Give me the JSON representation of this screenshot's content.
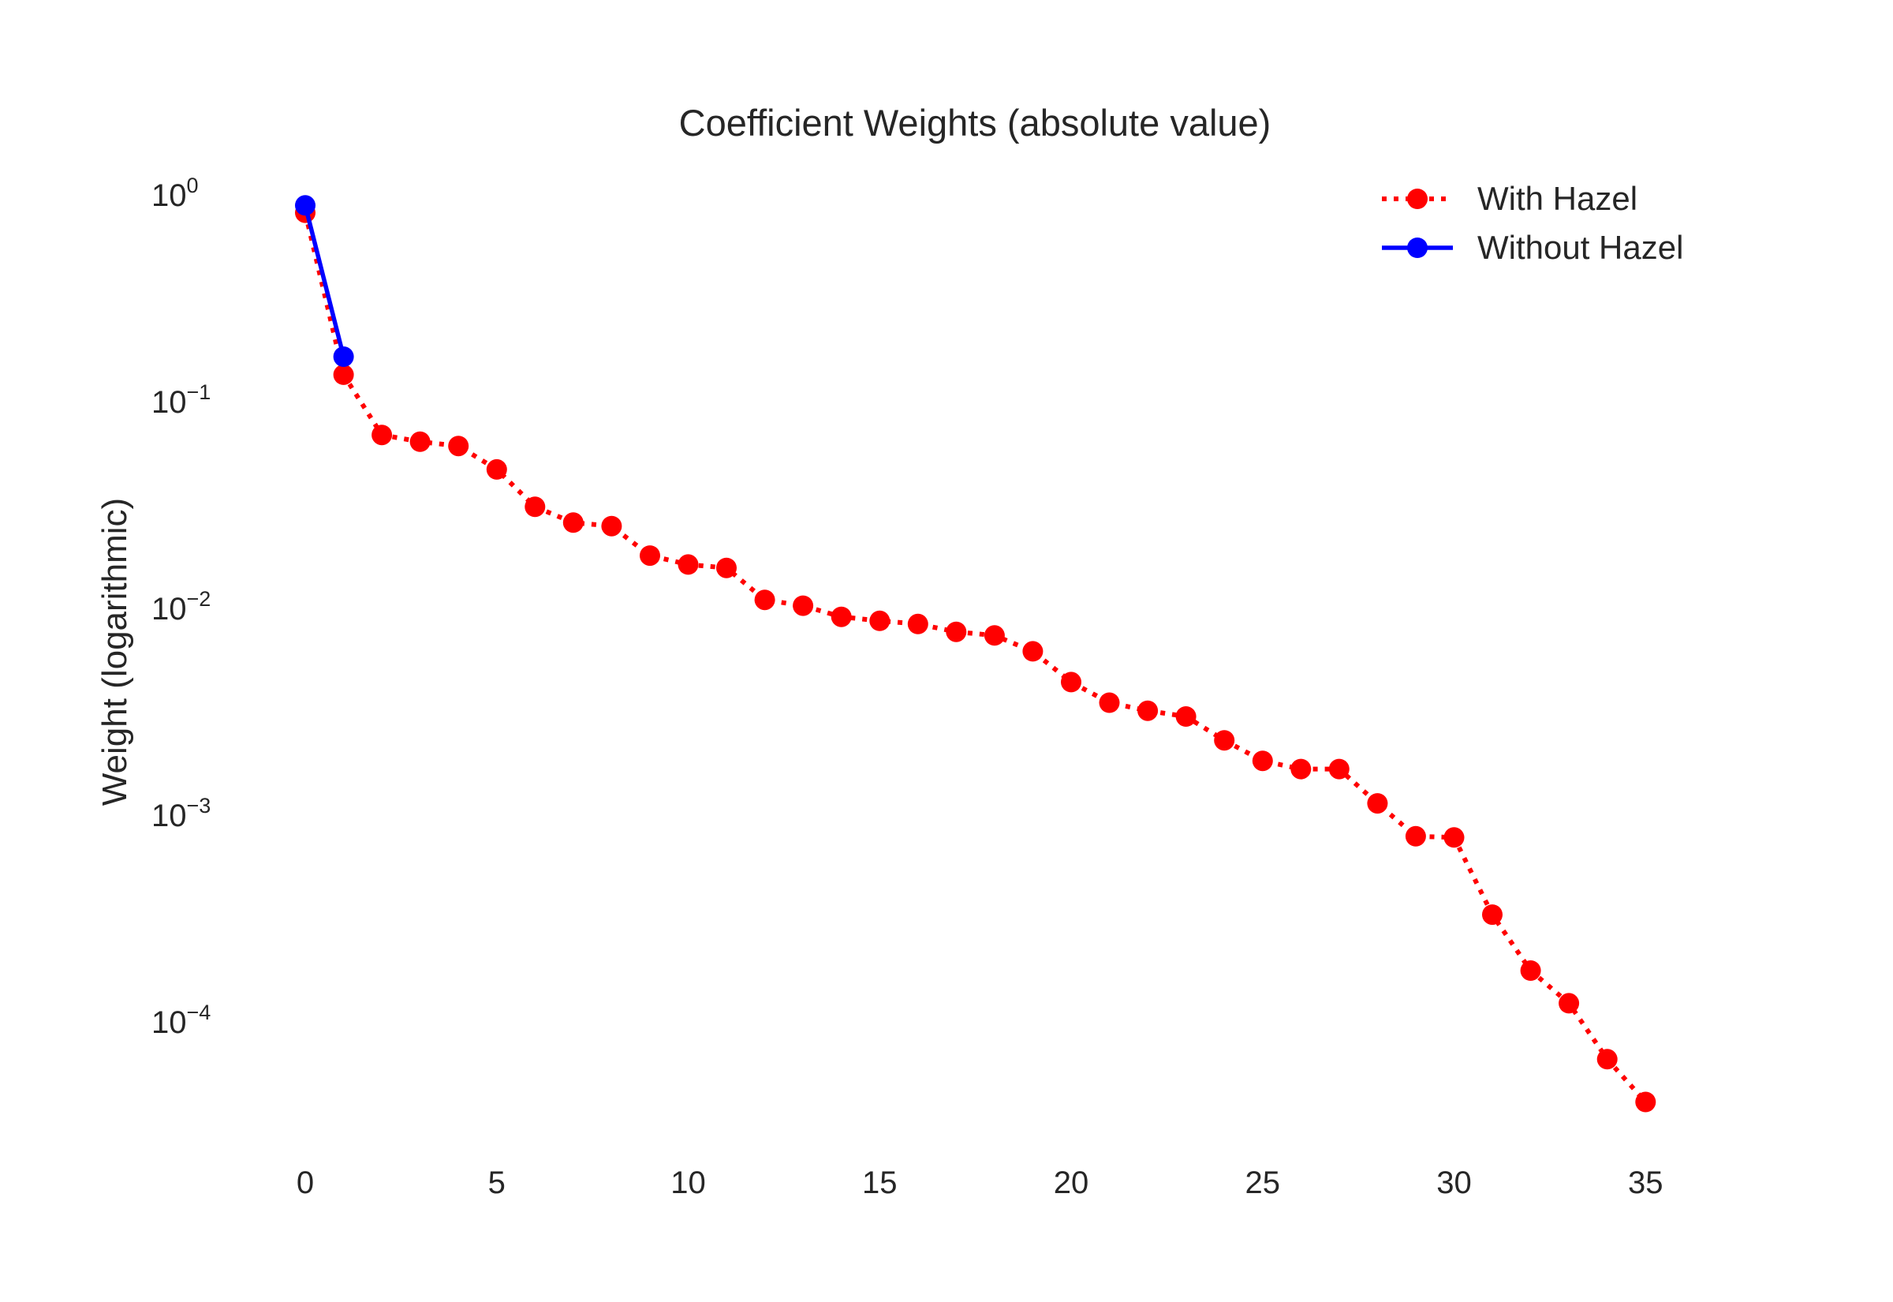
{
  "chart_data": {
    "type": "line",
    "title": "Coefficient Weights (absolute value)",
    "xlabel": "",
    "ylabel": "Weight (logarithmic)",
    "y_scale": "log",
    "grid": false,
    "legend_position": "top-right",
    "xlim": [
      -1.5,
      37.5
    ],
    "ylim": [
      2.5e-05,
      1.1
    ],
    "x_ticks": [
      "0",
      "5",
      "10",
      "15",
      "20",
      "25",
      "30",
      "35"
    ],
    "y_ticks": [
      {
        "value": 1,
        "base": "10",
        "exp": "0"
      },
      {
        "value": 0.1,
        "base": "10",
        "exp": "−1"
      },
      {
        "value": 0.01,
        "base": "10",
        "exp": "−2"
      },
      {
        "value": 0.001,
        "base": "10",
        "exp": "−3"
      },
      {
        "value": 0.0001,
        "base": "10",
        "exp": "−4"
      }
    ],
    "series": [
      {
        "name": "With Hazel",
        "color": "#ff0000",
        "line_style": "dotted",
        "marker": "circle",
        "x": [
          0,
          1,
          2,
          3,
          4,
          5,
          6,
          7,
          8,
          9,
          10,
          11,
          12,
          13,
          14,
          15,
          16,
          17,
          18,
          19,
          20,
          21,
          22,
          23,
          24,
          25,
          26,
          27,
          28,
          29,
          30,
          31,
          32,
          33,
          34,
          35
        ],
        "values": [
          0.82,
          0.135,
          0.069,
          0.064,
          0.061,
          0.047,
          0.031,
          0.026,
          0.025,
          0.018,
          0.0163,
          0.0157,
          0.011,
          0.0103,
          0.0091,
          0.0087,
          0.0084,
          0.0077,
          0.0074,
          0.0062,
          0.0044,
          0.0035,
          0.0032,
          0.003,
          0.0023,
          0.00183,
          0.00167,
          0.00167,
          0.00114,
          0.00079,
          0.00078,
          0.00033,
          0.000177,
          0.000123,
          6.6e-05,
          4.1e-05
        ]
      },
      {
        "name": "Without Hazel",
        "color": "#0000ff",
        "line_style": "solid",
        "marker": "circle",
        "x": [
          0,
          1
        ],
        "values": [
          0.89,
          0.165
        ]
      }
    ]
  }
}
